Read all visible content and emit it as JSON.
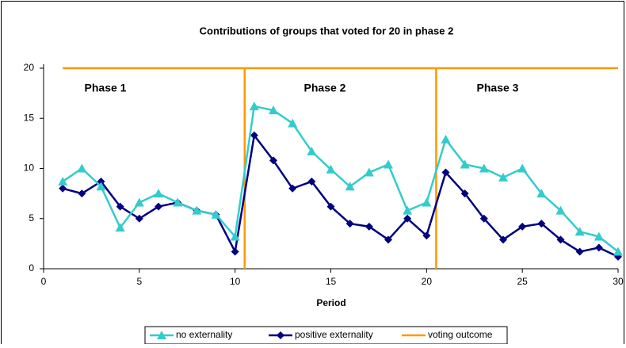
{
  "chart_data": {
    "type": "line",
    "title": "Contributions of groups that voted for 20 in phase 2",
    "x_label": "Period",
    "xlim": [
      0,
      30
    ],
    "xticks": [
      0,
      5,
      10,
      15,
      20,
      25,
      30
    ],
    "ylim": [
      0,
      20
    ],
    "yticks": [
      0,
      5,
      10,
      15,
      20
    ],
    "grid": false,
    "legend": "bottom",
    "annotations": [
      "Phase 1",
      "Phase 2",
      "Phase 3"
    ],
    "annotation_color": "#ff8c1a",
    "series": [
      {
        "name": "no externality",
        "color": "#33cccc",
        "marker": "triangle",
        "x": [
          1,
          2,
          3,
          4,
          5,
          6,
          7,
          8,
          9,
          10,
          11,
          12,
          13,
          14,
          15,
          16,
          17,
          18,
          19,
          20,
          21,
          22,
          23,
          24,
          25,
          26,
          27,
          28,
          29,
          30
        ],
        "values": [
          8.7,
          10.0,
          8.2,
          4.1,
          6.6,
          7.5,
          6.6,
          5.8,
          5.4,
          3.2,
          16.2,
          15.8,
          14.5,
          11.7,
          9.9,
          8.2,
          9.6,
          10.4,
          5.8,
          6.6,
          12.9,
          10.4,
          10.0,
          9.1,
          10.0,
          7.5,
          5.8,
          3.7,
          3.2,
          1.7
        ]
      },
      {
        "name": "positive externality",
        "color": "#000080",
        "marker": "diamond",
        "x": [
          1,
          2,
          3,
          4,
          5,
          6,
          7,
          8,
          9,
          10,
          11,
          12,
          13,
          14,
          15,
          16,
          17,
          18,
          19,
          20,
          21,
          22,
          23,
          24,
          25,
          26,
          27,
          28,
          29,
          30
        ],
        "values": [
          8.0,
          7.5,
          8.7,
          6.2,
          5.0,
          6.2,
          6.6,
          5.8,
          5.4,
          1.7,
          13.3,
          10.8,
          8.0,
          8.7,
          6.2,
          4.5,
          4.2,
          2.9,
          5.0,
          3.3,
          9.6,
          7.5,
          5.0,
          2.9,
          4.2,
          4.5,
          2.9,
          1.7,
          2.1,
          1.2
        ]
      },
      {
        "name": "voting outcome",
        "color": "#ff9900",
        "marker": "none",
        "x": [
          1,
          10.5,
          10.5,
          10.5,
          20.5,
          20.5,
          20.5,
          30
        ],
        "values": [
          20,
          20,
          0,
          20,
          20,
          0,
          20,
          20
        ]
      }
    ]
  }
}
